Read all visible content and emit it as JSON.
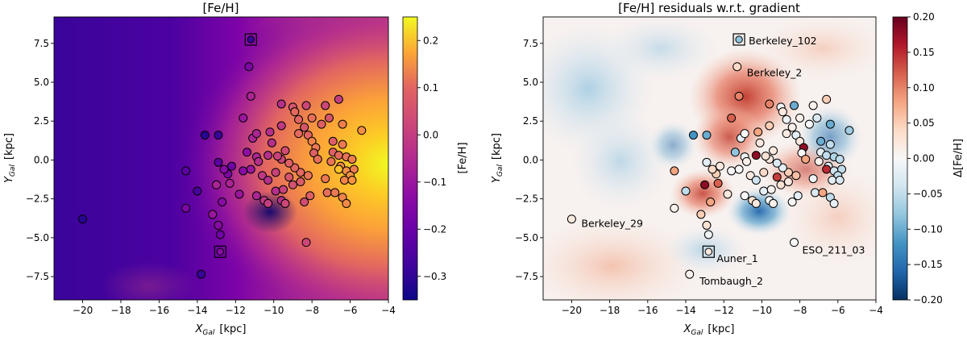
{
  "chart_data": [
    {
      "type": "scatter",
      "title": "[Fe/H]",
      "xlabel_base": "X",
      "xlabel_sub": "Gal",
      "xlabel_unit": "[kpc]",
      "ylabel_base": "Y",
      "ylabel_sub": "Gal",
      "ylabel_unit": "[kpc]",
      "xlim": [
        -21.5,
        -4.0
      ],
      "ylim": [
        -9.0,
        9.2
      ],
      "xticks": [
        -20,
        -18,
        -16,
        -14,
        -12,
        -10,
        -8,
        -6,
        -4
      ],
      "yticks": [
        -7.5,
        -5.0,
        -2.5,
        0.0,
        2.5,
        5.0,
        7.5
      ],
      "colorbar": {
        "label": "[Fe/H]",
        "min": -0.35,
        "max": 0.25,
        "ticks": [
          -0.3,
          -0.2,
          -0.1,
          0.0,
          0.1,
          0.2
        ],
        "colormap": "plasma"
      },
      "background": "interpolated [Fe/H] field: low (about -0.35) toward outer Galaxy at left, high (about +0.25) toward inner Galaxy at right"
    },
    {
      "type": "scatter",
      "title": "[Fe/H] residuals w.r.t. gradient",
      "xlabel_base": "X",
      "xlabel_sub": "Gal",
      "xlabel_unit": "[kpc]",
      "ylabel_base": "Y",
      "ylabel_sub": "Gal",
      "ylabel_unit": "[kpc]",
      "xlim": [
        -21.5,
        -4.0
      ],
      "ylim": [
        -9.0,
        9.2
      ],
      "xticks": [
        -20,
        -18,
        -16,
        -14,
        -12,
        -10,
        -8,
        -6,
        -4
      ],
      "yticks": [
        -7.5,
        -5.0,
        -2.5,
        0.0,
        2.5,
        5.0,
        7.5
      ],
      "colorbar": {
        "label": "Δ[Fe/H]",
        "min": -0.2,
        "max": 0.2,
        "ticks": [
          -0.2,
          -0.15,
          -0.1,
          -0.05,
          0.0,
          0.05,
          0.1,
          0.15,
          0.2
        ],
        "colormap": "RdBu_r"
      },
      "annotations": [
        {
          "text": "Berkeley_102",
          "x": -11.2,
          "y": 7.75
        },
        {
          "text": "Berkeley_2",
          "x": -11.3,
          "y": 6.0
        },
        {
          "text": "Berkeley_29",
          "x": -20.0,
          "y": -3.8
        },
        {
          "text": "ESO_211_03",
          "x": -8.3,
          "y": -5.3
        },
        {
          "text": "Auner_1",
          "x": -12.8,
          "y": -5.9
        },
        {
          "text": "Tombaugh_2",
          "x": -13.7,
          "y": -7.4
        }
      ]
    }
  ],
  "clusters": [
    {
      "x": -20.0,
      "y": -3.8,
      "feh": -0.32,
      "res": 0.02
    },
    {
      "x": -13.8,
      "y": -7.35,
      "feh": -0.3,
      "res": 0.01
    },
    {
      "x": -12.8,
      "y": -5.9,
      "feh": -0.18,
      "res": 0.02,
      "box": true
    },
    {
      "x": -12.8,
      "y": -4.8,
      "feh": -0.22,
      "res": -0.01
    },
    {
      "x": -12.9,
      "y": -4.2,
      "feh": -0.18,
      "res": 0.03
    },
    {
      "x": -11.2,
      "y": 7.75,
      "feh": -0.3,
      "res": -0.08,
      "box": true
    },
    {
      "x": -11.3,
      "y": 6.0,
      "feh": -0.2,
      "res": 0.04
    },
    {
      "x": -11.2,
      "y": 4.1,
      "feh": -0.12,
      "res": 0.1
    },
    {
      "x": -9.6,
      "y": 3.6,
      "feh": -0.1,
      "res": 0.1
    },
    {
      "x": -8.3,
      "y": 3.5,
      "feh": -0.05,
      "res": -0.1
    },
    {
      "x": -7.3,
      "y": 3.5,
      "feh": -0.05,
      "res": 0.01
    },
    {
      "x": -6.6,
      "y": 3.9,
      "feh": -0.07,
      "res": 0.05
    },
    {
      "x": -9.0,
      "y": 3.4,
      "feh": -0.02,
      "res": -0.01
    },
    {
      "x": -8.9,
      "y": 3.1,
      "feh": 0.02,
      "res": 0.02
    },
    {
      "x": -8.7,
      "y": 2.6,
      "feh": 0.01,
      "res": -0.01
    },
    {
      "x": -8.0,
      "y": 2.7,
      "feh": 0.03,
      "res": 0.01
    },
    {
      "x": -7.1,
      "y": 2.7,
      "feh": -0.02,
      "res": -0.03
    },
    {
      "x": -7.5,
      "y": 2.3,
      "feh": 0.0,
      "res": 0.0
    },
    {
      "x": -6.4,
      "y": 2.3,
      "feh": 0.06,
      "res": -0.1
    },
    {
      "x": -5.4,
      "y": 1.9,
      "feh": 0.09,
      "res": -0.07
    },
    {
      "x": -8.7,
      "y": 1.7,
      "feh": 0.02,
      "res": 0.02
    },
    {
      "x": -8.2,
      "y": 1.6,
      "feh": 0.01,
      "res": -0.02
    },
    {
      "x": -6.9,
      "y": 1.2,
      "feh": 0.0,
      "res": -0.1
    },
    {
      "x": -6.4,
      "y": 1.0,
      "feh": 0.05,
      "res": -0.05
    },
    {
      "x": -8.0,
      "y": 1.2,
      "feh": 0.07,
      "res": 0.02
    },
    {
      "x": -7.8,
      "y": 0.8,
      "feh": 0.05,
      "res": 0.18
    },
    {
      "x": -7.9,
      "y": 0.45,
      "feh": 0.0,
      "res": 0.0
    },
    {
      "x": -6.9,
      "y": 0.5,
      "feh": 0.0,
      "res": -0.02
    },
    {
      "x": -6.6,
      "y": 0.3,
      "feh": 0.02,
      "res": -0.05
    },
    {
      "x": -6.2,
      "y": 0.2,
      "feh": 0.04,
      "res": -0.06
    },
    {
      "x": -5.9,
      "y": 0.05,
      "feh": 0.06,
      "res": -0.05
    },
    {
      "x": -7.0,
      "y": -0.1,
      "feh": 0.04,
      "res": 0.01
    },
    {
      "x": -6.5,
      "y": -0.4,
      "feh": 0.08,
      "res": -0.03
    },
    {
      "x": -6.2,
      "y": -0.7,
      "feh": 0.09,
      "res": -0.04
    },
    {
      "x": -5.8,
      "y": -0.6,
      "feh": 0.06,
      "res": -0.05
    },
    {
      "x": -6.6,
      "y": -0.6,
      "feh": 0.17,
      "res": 0.15
    },
    {
      "x": -6.0,
      "y": -1.0,
      "feh": 0.1,
      "res": -0.05
    },
    {
      "x": -6.3,
      "y": -1.3,
      "feh": 0.07,
      "res": -0.02
    },
    {
      "x": -5.9,
      "y": -1.3,
      "feh": 0.1,
      "res": -0.03
    },
    {
      "x": -7.3,
      "y": -1.2,
      "feh": 0.05,
      "res": -0.01
    },
    {
      "x": -8.2,
      "y": -1.0,
      "feh": 0.04,
      "res": 0.06
    },
    {
      "x": -8.6,
      "y": -0.8,
      "feh": 0.02,
      "res": 0.05
    },
    {
      "x": -8.9,
      "y": -0.5,
      "feh": 0.01,
      "res": -0.02
    },
    {
      "x": -9.2,
      "y": -0.2,
      "feh": 0.0,
      "res": -0.03
    },
    {
      "x": -9.6,
      "y": 0.05,
      "feh": -0.05,
      "res": 0.02
    },
    {
      "x": -9.8,
      "y": 0.25,
      "feh": -0.06,
      "res": 0.03
    },
    {
      "x": -10.3,
      "y": 0.3,
      "feh": -0.1,
      "res": 0.18
    },
    {
      "x": -10.9,
      "y": 0.2,
      "feh": -0.12,
      "res": -0.01
    },
    {
      "x": -10.8,
      "y": -0.1,
      "feh": -0.1,
      "res": 0.01
    },
    {
      "x": -11.2,
      "y": -0.6,
      "feh": -0.15,
      "res": 0.0
    },
    {
      "x": -11.4,
      "y": 0.5,
      "feh": -0.17,
      "res": -0.08
    },
    {
      "x": -11.1,
      "y": 1.4,
      "feh": -0.12,
      "res": -0.02
    },
    {
      "x": -10.9,
      "y": 1.7,
      "feh": -0.12,
      "res": 0.0
    },
    {
      "x": -12.9,
      "y": 1.6,
      "feh": -0.3,
      "res": -0.1
    },
    {
      "x": -13.6,
      "y": 1.6,
      "feh": -0.32,
      "res": -0.12
    },
    {
      "x": -12.9,
      "y": -0.15,
      "feh": -0.25,
      "res": -0.02
    },
    {
      "x": -12.2,
      "y": -0.4,
      "feh": -0.22,
      "res": 0.02
    },
    {
      "x": -11.6,
      "y": -0.7,
      "feh": -0.18,
      "res": 0.0
    },
    {
      "x": -12.4,
      "y": -0.9,
      "feh": -0.2,
      "res": 0.05
    },
    {
      "x": -12.6,
      "y": -0.6,
      "feh": -0.18,
      "res": 0.04
    },
    {
      "x": -13.0,
      "y": -1.6,
      "feh": -0.12,
      "res": 0.18
    },
    {
      "x": -12.3,
      "y": -1.5,
      "feh": -0.12,
      "res": 0.12
    },
    {
      "x": -12.7,
      "y": -2.7,
      "feh": -0.18,
      "res": 0.08
    },
    {
      "x": -11.8,
      "y": -2.2,
      "feh": -0.15,
      "res": 0.02
    },
    {
      "x": -10.9,
      "y": -2.3,
      "feh": -0.12,
      "res": 0.0
    },
    {
      "x": -10.5,
      "y": -2.6,
      "feh": -0.08,
      "res": 0.03
    },
    {
      "x": -10.3,
      "y": -2.8,
      "feh": -0.07,
      "res": 0.02
    },
    {
      "x": -9.6,
      "y": -2.6,
      "feh": -0.1,
      "res": 0.0
    },
    {
      "x": -9.4,
      "y": -2.8,
      "feh": -0.05,
      "res": 0.01
    },
    {
      "x": -9.9,
      "y": -2.0,
      "feh": -0.1,
      "res": -0.02
    },
    {
      "x": -9.5,
      "y": -1.9,
      "feh": -0.06,
      "res": 0.01
    },
    {
      "x": -9.0,
      "y": -1.6,
      "feh": -0.03,
      "res": 0.03
    },
    {
      "x": -8.6,
      "y": -1.4,
      "feh": -0.01,
      "res": 0.02
    },
    {
      "x": -8.1,
      "y": -2.3,
      "feh": 0.0,
      "res": -0.02
    },
    {
      "x": -8.4,
      "y": -2.7,
      "feh": -0.04,
      "res": 0.0
    },
    {
      "x": -7.2,
      "y": -2.1,
      "feh": 0.03,
      "res": -0.03
    },
    {
      "x": -6.8,
      "y": -2.1,
      "feh": 0.05,
      "res": 0.08
    },
    {
      "x": -6.4,
      "y": -2.4,
      "feh": 0.07,
      "res": -0.05
    },
    {
      "x": -6.2,
      "y": -2.8,
      "feh": 0.08,
      "res": -0.02
    },
    {
      "x": -9.2,
      "y": -1.1,
      "feh": -0.02,
      "res": 0.14
    },
    {
      "x": -9.9,
      "y": -0.8,
      "feh": -0.06,
      "res": 0.04
    },
    {
      "x": -10.6,
      "y": -1.0,
      "feh": -0.08,
      "res": 0.02
    },
    {
      "x": -10.3,
      "y": -1.3,
      "feh": -0.1,
      "res": -0.04
    },
    {
      "x": -14.6,
      "y": -0.7,
      "feh": -0.25,
      "res": 0.08
    },
    {
      "x": -14.0,
      "y": -2.0,
      "feh": -0.28,
      "res": -0.05
    },
    {
      "x": -14.6,
      "y": -3.1,
      "feh": -0.2,
      "res": 0.01
    },
    {
      "x": -13.2,
      "y": -3.5,
      "feh": -0.15,
      "res": 0.05
    },
    {
      "x": -8.3,
      "y": -5.3,
      "feh": -0.05,
      "res": 0.0
    },
    {
      "x": -9.6,
      "y": 2.2,
      "feh": -0.08,
      "res": 0.05
    },
    {
      "x": -10.1,
      "y": 1.1,
      "feh": -0.1,
      "res": 0.02
    },
    {
      "x": -11.6,
      "y": 2.7,
      "feh": -0.15,
      "res": 0.12
    },
    {
      "x": -10.2,
      "y": 1.8,
      "feh": -0.1,
      "res": 0.08
    },
    {
      "x": -8.4,
      "y": 2.1,
      "feh": -0.02,
      "res": 0.01
    },
    {
      "x": -7.7,
      "y": 0.05,
      "feh": 0.03,
      "res": 0.08
    },
    {
      "x": -9.4,
      "y": 0.6,
      "feh": -0.04,
      "res": 0.02
    }
  ]
}
